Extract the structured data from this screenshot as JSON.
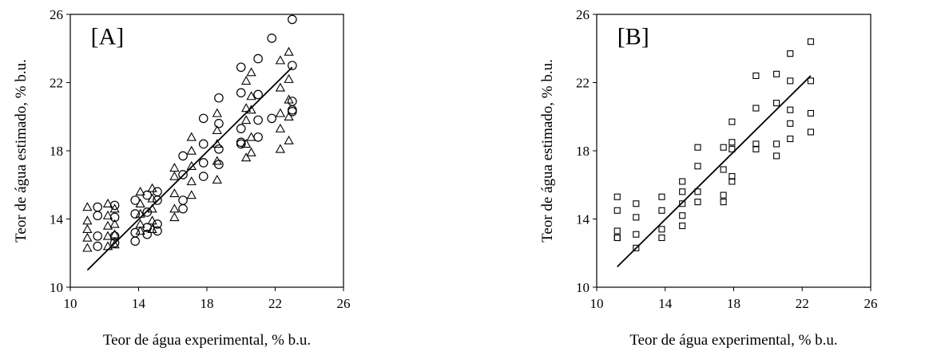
{
  "chart_data": [
    {
      "type": "scatter",
      "panel_label": "[A]",
      "xlabel": "Teor de água experimental, % b.u.",
      "ylabel": "Teor de água estimado, % b.u.",
      "xlim": [
        10,
        26
      ],
      "ylim": [
        10,
        26
      ],
      "xticks": [
        "10",
        "14",
        "18",
        "22",
        "26"
      ],
      "yticks": [
        "10",
        "14",
        "18",
        "22",
        "26"
      ],
      "grid": false,
      "series": [
        {
          "marker": "triangle",
          "x": [
            11.0,
            11.0,
            11.0,
            11.0,
            11.0,
            12.2,
            12.2,
            12.2,
            12.2,
            12.2,
            12.6,
            12.6,
            12.6,
            12.6,
            14.1,
            14.1,
            14.1,
            14.1,
            14.1,
            14.8,
            14.8,
            14.8,
            14.8,
            14.8,
            16.1,
            16.1,
            16.1,
            16.1,
            16.1,
            17.1,
            17.1,
            17.1,
            17.1,
            17.1,
            18.6,
            18.6,
            18.6,
            18.6,
            18.6,
            20.3,
            20.3,
            20.3,
            20.3,
            20.3,
            20.6,
            20.6,
            20.6,
            20.6,
            20.6,
            22.3,
            22.3,
            22.3,
            22.3,
            22.3,
            22.8,
            22.8,
            22.8,
            22.8,
            22.8
          ],
          "y": [
            14.7,
            13.9,
            13.4,
            12.9,
            12.3,
            14.9,
            14.2,
            13.6,
            13.0,
            12.4,
            14.6,
            13.7,
            13.1,
            12.5,
            15.6,
            14.9,
            14.3,
            13.7,
            13.3,
            15.8,
            15.2,
            14.6,
            13.9,
            13.4,
            17.0,
            16.5,
            15.5,
            14.6,
            14.1,
            18.8,
            18.0,
            17.1,
            16.2,
            15.4,
            20.2,
            19.2,
            18.4,
            17.4,
            16.3,
            22.1,
            20.5,
            19.8,
            18.4,
            17.6,
            22.6,
            21.2,
            20.4,
            18.8,
            17.9,
            23.3,
            21.7,
            20.2,
            19.3,
            18.1,
            23.8,
            22.2,
            21.0,
            20.0,
            18.6
          ]
        },
        {
          "marker": "circle",
          "x": [
            11.6,
            11.6,
            11.6,
            11.6,
            12.6,
            12.6,
            12.6,
            12.6,
            13.8,
            13.8,
            13.8,
            13.8,
            14.5,
            14.5,
            14.5,
            14.5,
            15.1,
            15.1,
            15.1,
            15.1,
            16.6,
            16.6,
            16.6,
            16.6,
            17.8,
            17.8,
            17.8,
            17.8,
            18.7,
            18.7,
            18.7,
            18.7,
            20.0,
            20.0,
            20.0,
            20.0,
            20.0,
            21.0,
            21.0,
            21.0,
            21.0,
            21.8,
            21.8,
            23.0,
            23.0,
            23.0,
            23.0,
            23.0
          ],
          "y": [
            14.7,
            14.2,
            13.0,
            12.4,
            14.8,
            14.1,
            13.0,
            12.6,
            15.1,
            14.3,
            13.2,
            12.7,
            15.4,
            14.4,
            13.5,
            13.1,
            15.6,
            15.1,
            13.7,
            13.3,
            17.7,
            16.6,
            15.1,
            14.6,
            19.9,
            18.4,
            17.3,
            16.5,
            21.1,
            19.6,
            18.1,
            17.2,
            22.9,
            21.4,
            19.3,
            18.5,
            18.4,
            23.4,
            21.3,
            19.8,
            18.8,
            24.6,
            19.9,
            25.7,
            23.0,
            20.9,
            20.4,
            20.3
          ]
        }
      ],
      "fit_line": {
        "x": [
          11.0,
          23.0
        ],
        "y": [
          11.0,
          22.9
        ]
      }
    },
    {
      "type": "scatter",
      "panel_label": "[B]",
      "xlabel": "Teor de água experimental, % b.u.",
      "ylabel": "Teor de água estimado, % b.u.",
      "xlim": [
        10,
        26
      ],
      "ylim": [
        10,
        26
      ],
      "xticks": [
        "10",
        "14",
        "18",
        "22",
        "26"
      ],
      "yticks": [
        "10",
        "14",
        "18",
        "22",
        "26"
      ],
      "grid": false,
      "series": [
        {
          "marker": "square",
          "x": [
            11.2,
            11.2,
            11.2,
            11.2,
            11.2,
            12.3,
            12.3,
            12.3,
            12.3,
            13.8,
            13.8,
            13.8,
            13.8,
            15.0,
            15.0,
            15.0,
            15.0,
            15.0,
            15.9,
            15.9,
            15.9,
            15.9,
            17.4,
            17.4,
            17.4,
            17.4,
            17.9,
            17.9,
            17.9,
            17.9,
            17.9,
            19.3,
            19.3,
            19.3,
            19.3,
            20.5,
            20.5,
            20.5,
            20.5,
            21.3,
            21.3,
            21.3,
            21.3,
            21.3,
            22.5,
            22.5,
            22.5,
            22.5
          ],
          "y": [
            15.3,
            14.5,
            13.3,
            12.9,
            12.9,
            14.9,
            14.1,
            13.1,
            12.3,
            15.3,
            14.5,
            13.4,
            12.9,
            16.2,
            15.6,
            14.9,
            14.2,
            13.6,
            18.2,
            17.1,
            15.6,
            15.0,
            18.2,
            16.9,
            15.4,
            15.0,
            19.7,
            18.5,
            18.1,
            16.5,
            16.2,
            22.4,
            20.5,
            18.4,
            18.1,
            22.5,
            20.8,
            18.4,
            17.7,
            23.7,
            22.1,
            20.4,
            19.6,
            18.7,
            24.4,
            22.1,
            20.2,
            19.1
          ]
        }
      ],
      "fit_line": {
        "x": [
          11.2,
          22.5
        ],
        "y": [
          11.2,
          22.4
        ]
      }
    }
  ]
}
